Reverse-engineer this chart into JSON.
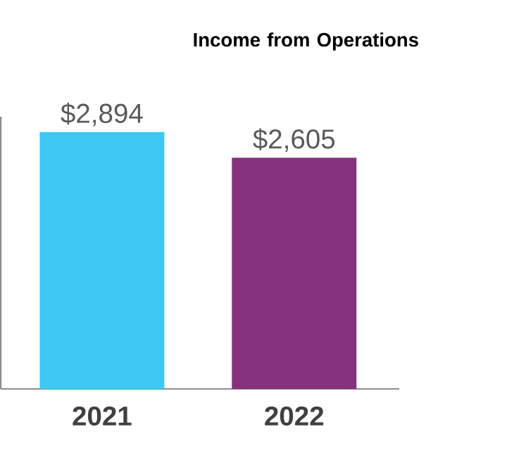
{
  "chart_data": {
    "type": "bar",
    "title": "Income from Operations",
    "categories": [
      "2021",
      "2022"
    ],
    "values": [
      2894,
      2605
    ],
    "value_labels": [
      "$2,894",
      "$2,605"
    ],
    "colors": [
      "#3ec8f4",
      "#86327f"
    ],
    "tick_labels": "x"
  }
}
